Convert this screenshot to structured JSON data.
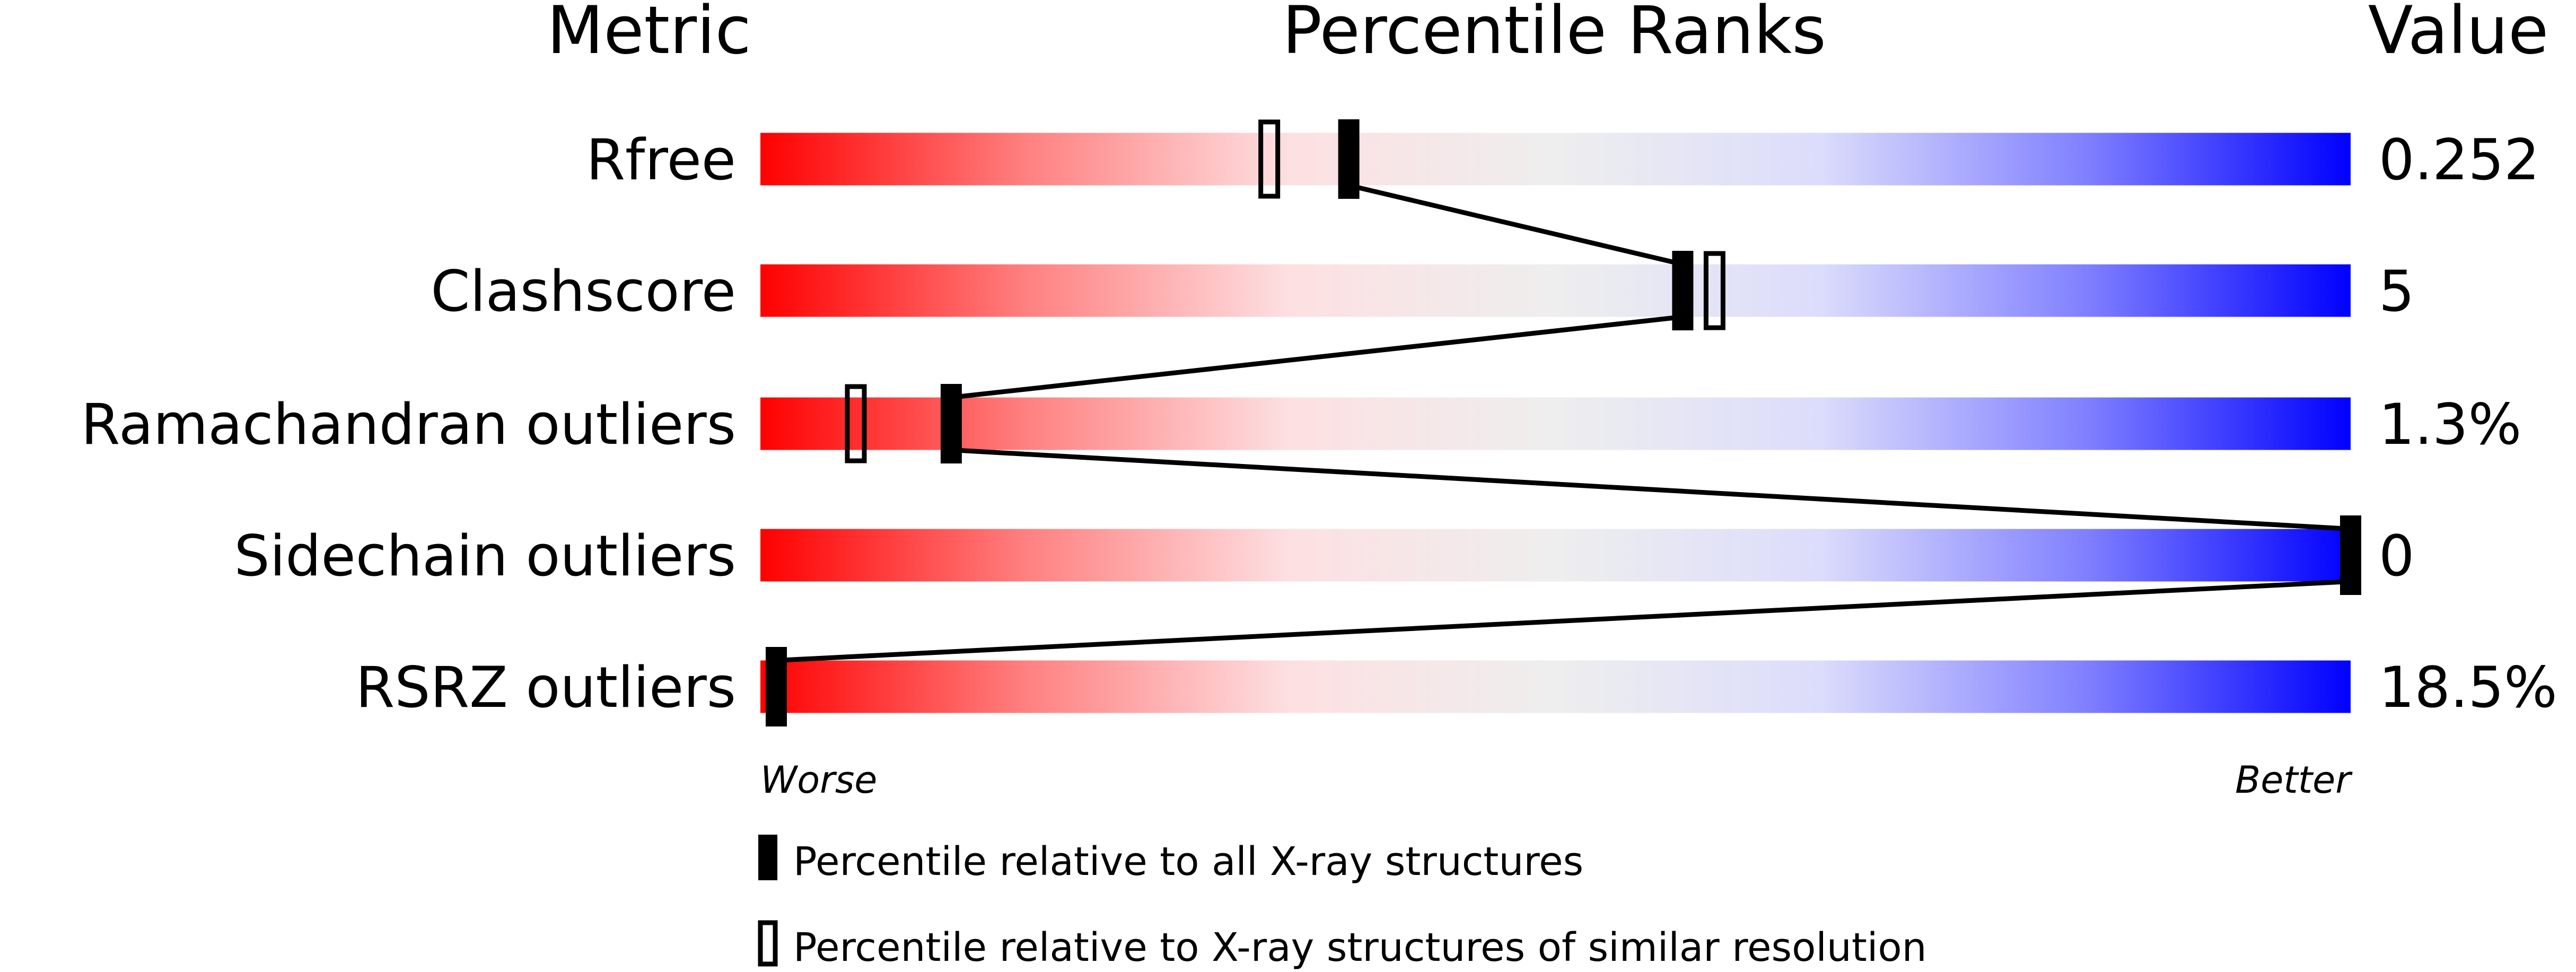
{
  "chart_data": {
    "type": "percentile-ranks",
    "headers": {
      "metric": "Metric",
      "ranks": "Percentile Ranks",
      "value": "Value"
    },
    "xlim": [
      0,
      100
    ],
    "axis_labels": {
      "left": "Worse",
      "right": "Better"
    },
    "gradient_colors": [
      "#ff0000",
      "#ff8080",
      "#fde0e2",
      "#eeeeee",
      "#dcdcfc",
      "#8080ff",
      "#0000ff"
    ],
    "rows": [
      {
        "metric": "Rfree",
        "value": "0.252",
        "percentile_all": 37,
        "percentile_similar": 32
      },
      {
        "metric": "Clashscore",
        "value": "5",
        "percentile_all": 58,
        "percentile_similar": 60
      },
      {
        "metric": "Ramachandran outliers",
        "value": "1.3%",
        "percentile_all": 12,
        "percentile_similar": 6
      },
      {
        "metric": "Sidechain outliers",
        "value": "0",
        "percentile_all": 100,
        "percentile_similar": null
      },
      {
        "metric": "RSRZ outliers",
        "value": "18.5%",
        "percentile_all": 1,
        "percentile_similar": null
      }
    ],
    "legend": [
      {
        "marker": "filled",
        "label": "Percentile relative to all X-ray structures"
      },
      {
        "marker": "hollow",
        "label": "Percentile relative to X-ray structures of similar resolution"
      }
    ]
  }
}
